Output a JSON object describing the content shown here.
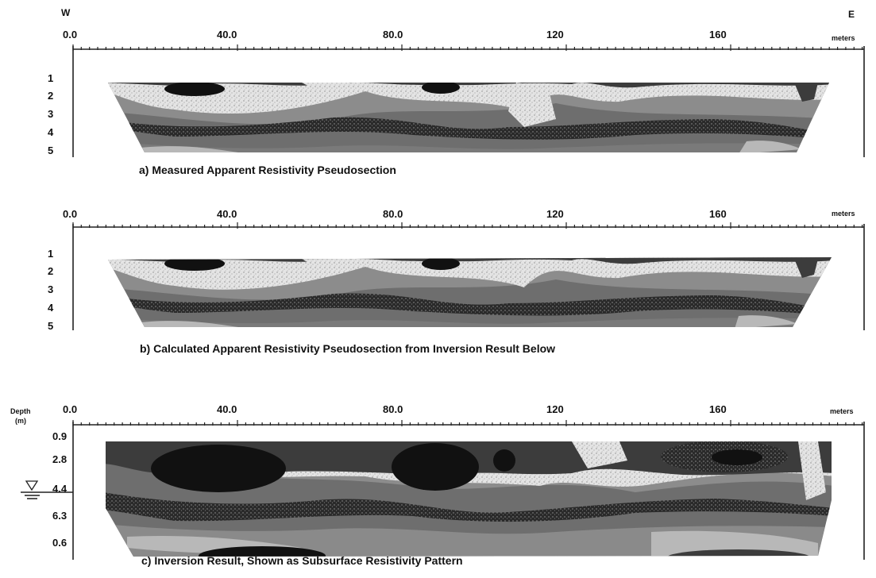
{
  "direction": {
    "west": "W",
    "east": "E"
  },
  "units": "meters",
  "x_ticks": [
    "0.0",
    "40.0",
    "80.0",
    "120",
    "160"
  ],
  "panels": [
    {
      "id": "a",
      "rows": [
        "1",
        "2",
        "3",
        "4",
        "5"
      ],
      "caption": "a) Measured Apparent Resistivity Pseudosection"
    },
    {
      "id": "b",
      "rows": [
        "1",
        "2",
        "3",
        "4",
        "5"
      ],
      "caption": "b) Calculated Apparent Resistivity Pseudosection from Inversion Result Below"
    },
    {
      "id": "c",
      "depth_label_line1": "Depth",
      "depth_label_line2": "(m)",
      "rows": [
        "0.9",
        "2.8",
        "4.4",
        "6.3",
        "0.6"
      ],
      "caption": "c) Inversion Result, Shown as Subsurface Resistivity Pattern",
      "water_table_icon": "water-table-triangle-icon"
    }
  ],
  "colors": {
    "low": "#111111",
    "mid_dark": "#3c3c3c",
    "mid": "#6e6e6e",
    "mid_light": "#9a9a9a",
    "light": "#c4c4c4",
    "speckle": "#e6e6e6"
  }
}
